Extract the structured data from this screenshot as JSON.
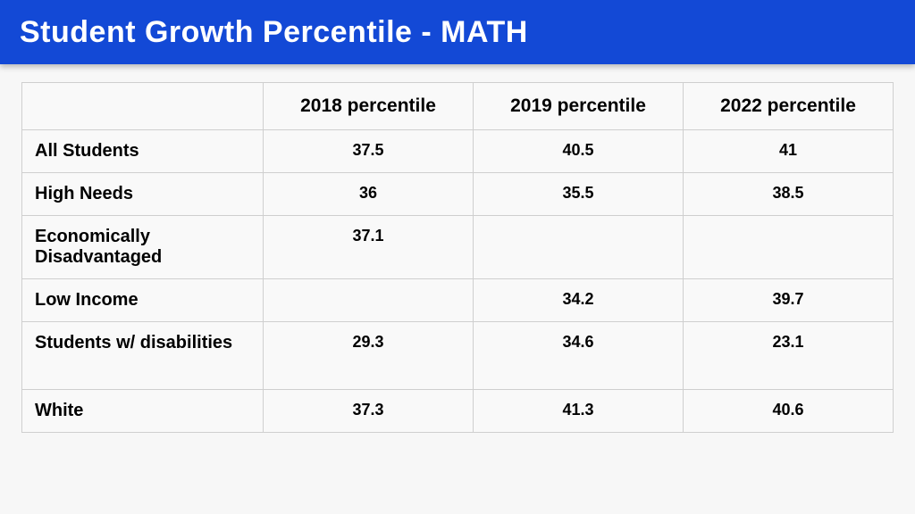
{
  "header": {
    "title": "Student Growth Percentile - MATH",
    "bg_color": "#1349d6",
    "text_color": "#ffffff",
    "title_fontsize": 34
  },
  "table": {
    "type": "table",
    "background_color": "#f9f9f9",
    "grid_color": "#cfcfcf",
    "header_fontsize": 21,
    "rowlabel_fontsize": 20,
    "cell_fontsize": 18,
    "columns": [
      "",
      "2018 percentile",
      "2019 percentile",
      "2022 percentile"
    ],
    "rows": [
      {
        "label": "All Students",
        "values": [
          "37.5",
          "40.5",
          "41"
        ]
      },
      {
        "label": "High Needs",
        "values": [
          "36",
          "35.5",
          "38.5"
        ]
      },
      {
        "label": "Economically Disadvantaged",
        "values": [
          "37.1",
          "",
          ""
        ]
      },
      {
        "label": "Low Income",
        "values": [
          "",
          "34.2",
          "39.7"
        ]
      },
      {
        "label": "Students w/ disabilities",
        "values": [
          "29.3",
          "34.6",
          "23.1"
        ]
      },
      {
        "label": "White",
        "values": [
          "37.3",
          "41.3",
          "40.6"
        ]
      }
    ]
  }
}
